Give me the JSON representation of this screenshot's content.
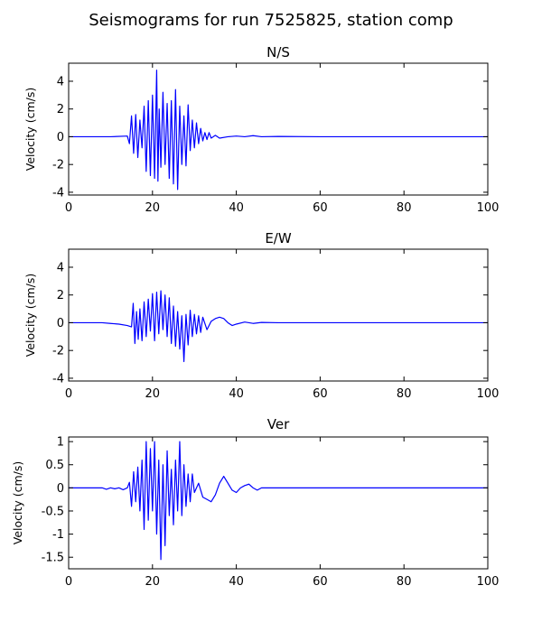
{
  "figure": {
    "title": "Seismograms for run 7525825, station comp"
  },
  "chart_data": [
    {
      "type": "line",
      "title": "N/S",
      "xlabel": "",
      "ylabel": "Velocity (cm/s)",
      "xlim": [
        0,
        100
      ],
      "ylim": [
        -4.2,
        5.3
      ],
      "xticks": [
        0,
        20,
        40,
        60,
        80,
        100
      ],
      "yticks": [
        -4,
        -2,
        0,
        2,
        4
      ],
      "grid": false,
      "color": "#0000ff",
      "x": [
        0,
        10,
        14,
        14.5,
        15,
        15.5,
        16,
        16.5,
        17,
        17.5,
        18,
        18.5,
        19,
        19.5,
        20,
        20.5,
        21,
        21.3,
        21.6,
        22,
        22.5,
        23,
        23.5,
        24,
        24.5,
        25,
        25.5,
        26,
        26.5,
        27,
        27.5,
        28,
        28.5,
        29,
        29.5,
        30,
        30.5,
        31,
        31.5,
        32,
        32.5,
        33,
        33.5,
        34,
        35,
        36,
        38,
        40,
        42,
        44,
        46,
        50,
        60,
        80,
        100
      ],
      "values": [
        0,
        0,
        0.05,
        -0.5,
        1.5,
        -1.2,
        1.6,
        -1.5,
        1.2,
        -0.8,
        2.2,
        -2.5,
        2.6,
        -2.8,
        3.0,
        -3.0,
        4.8,
        -3.2,
        2.0,
        -2.2,
        3.2,
        -2.0,
        2.4,
        -3.0,
        2.6,
        -3.4,
        3.4,
        -3.8,
        2.2,
        -2.0,
        1.5,
        -2.1,
        2.3,
        -1.0,
        1.2,
        -0.8,
        1.0,
        -0.5,
        0.6,
        -0.3,
        0.3,
        -0.2,
        0.3,
        -0.1,
        0.1,
        -0.1,
        0.0,
        0.05,
        0.0,
        0.08,
        0.0,
        0.02,
        0,
        0,
        0
      ]
    },
    {
      "type": "line",
      "title": "E/W",
      "xlabel": "",
      "ylabel": "Velocity (cm/s)",
      "xlim": [
        0,
        100
      ],
      "ylim": [
        -4.2,
        5.3
      ],
      "xticks": [
        0,
        20,
        40,
        60,
        80,
        100
      ],
      "yticks": [
        -4,
        -2,
        0,
        2,
        4
      ],
      "grid": false,
      "color": "#0000ff",
      "x": [
        0,
        8,
        10,
        12,
        14,
        15,
        15.4,
        15.8,
        16.2,
        16.6,
        17,
        17.5,
        18,
        18.5,
        19,
        19.5,
        20,
        20.5,
        21,
        21.5,
        22,
        22.5,
        23,
        23.5,
        24,
        24.5,
        25,
        25.5,
        26,
        26.5,
        27,
        27.5,
        28,
        28.5,
        29,
        29.5,
        30,
        30.5,
        31,
        31.5,
        32,
        33,
        34,
        35,
        36,
        37,
        38,
        39,
        40,
        42,
        44,
        46,
        50,
        60,
        80,
        100
      ],
      "values": [
        0,
        0,
        -0.05,
        -0.1,
        -0.2,
        -0.3,
        1.4,
        -1.5,
        0.8,
        -1.2,
        1.0,
        -1.3,
        1.5,
        -1.0,
        1.7,
        -0.6,
        2.1,
        -1.3,
        2.2,
        -0.8,
        2.3,
        -0.5,
        2.0,
        -1.0,
        1.8,
        -1.5,
        1.2,
        -1.7,
        0.8,
        -1.9,
        0.5,
        -2.8,
        0.6,
        -1.6,
        0.9,
        -1.0,
        0.6,
        -0.8,
        0.5,
        -0.7,
        0.4,
        -0.5,
        0.1,
        0.3,
        0.4,
        0.3,
        0.0,
        -0.2,
        -0.1,
        0.05,
        -0.05,
        0.02,
        0.0,
        0,
        0,
        0
      ]
    },
    {
      "type": "line",
      "title": "Ver",
      "xlabel": "",
      "ylabel": "Velocity (cm/s)",
      "xlim": [
        0,
        100
      ],
      "ylim": [
        -1.75,
        1.1
      ],
      "xticks": [
        0,
        20,
        40,
        60,
        80,
        100
      ],
      "yticks": [
        -1.5,
        -1.0,
        -0.5,
        0.0,
        0.5,
        1.0
      ],
      "grid": false,
      "color": "#0000ff",
      "x": [
        0,
        8,
        9,
        10,
        11,
        12,
        13,
        14,
        14.5,
        15,
        15.5,
        16,
        16.5,
        17,
        17.5,
        18,
        18.5,
        19,
        19.5,
        20,
        20.5,
        21,
        21.5,
        22,
        22.5,
        23,
        23.5,
        24,
        24.5,
        25,
        25.5,
        26,
        26.5,
        27,
        27.5,
        28,
        28.5,
        29,
        29.5,
        30,
        31,
        32,
        33,
        34,
        35,
        36,
        37,
        38,
        39,
        40,
        41,
        42,
        43,
        44,
        45,
        46,
        48,
        50,
        60,
        80,
        100
      ],
      "values": [
        0,
        0,
        -0.03,
        0.0,
        -0.02,
        0.0,
        -0.04,
        0.0,
        0.12,
        -0.4,
        0.35,
        -0.3,
        0.45,
        -0.5,
        0.6,
        -0.9,
        1.0,
        -0.7,
        0.85,
        -0.5,
        1.0,
        -1.0,
        0.6,
        -1.55,
        0.5,
        -1.25,
        0.8,
        -0.6,
        0.4,
        -0.8,
        0.6,
        -0.5,
        1.0,
        -0.6,
        0.5,
        -0.4,
        0.3,
        -0.3,
        0.3,
        -0.1,
        0.1,
        -0.2,
        -0.25,
        -0.3,
        -0.15,
        0.1,
        0.25,
        0.1,
        -0.05,
        -0.1,
        0.0,
        0.05,
        0.08,
        0.0,
        -0.05,
        0.0,
        0.0,
        0.0,
        0,
        0,
        0
      ]
    }
  ]
}
